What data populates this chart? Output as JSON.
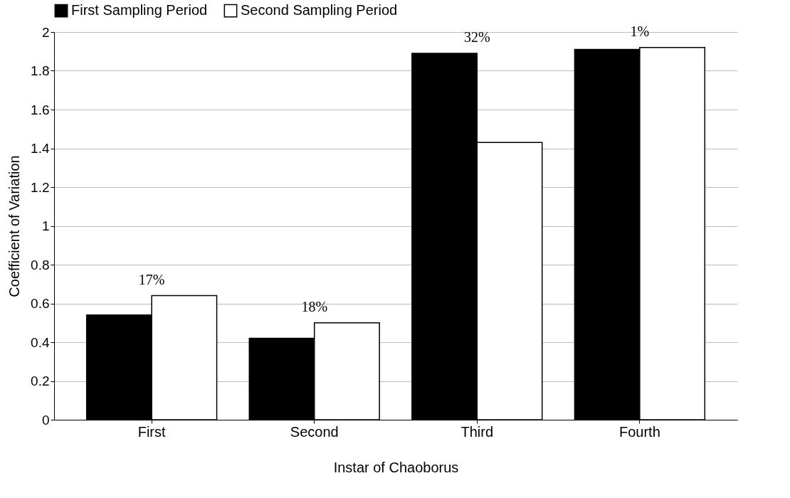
{
  "chart_data": {
    "type": "bar",
    "xlabel": "Instar of Chaoborus",
    "ylabel": "Coefficient of Variation",
    "categories": [
      "First",
      "Second",
      "Third",
      "Fourth"
    ],
    "series": [
      {
        "name": "First Sampling Period",
        "color": "#000000",
        "values": [
          0.54,
          0.42,
          1.89,
          1.91
        ]
      },
      {
        "name": "Second Sampling Period",
        "color": "#ffffff",
        "values": [
          0.64,
          0.5,
          1.43,
          1.92
        ]
      }
    ],
    "ylim": [
      0,
      2
    ],
    "yticks": [
      0,
      0.2,
      0.4,
      0.6,
      0.8,
      1,
      1.2,
      1.4,
      1.6,
      1.8,
      2
    ],
    "grid": "y",
    "legend": "top",
    "annotations": [
      "17%",
      "18%",
      "32%",
      "1%"
    ]
  }
}
